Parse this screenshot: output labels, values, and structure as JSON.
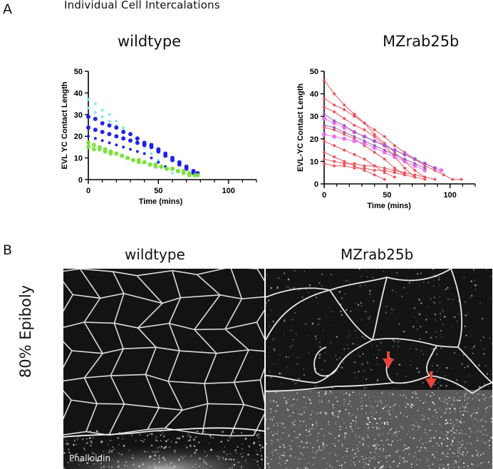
{
  "panel_a": {
    "letter": "A",
    "title": "Individual Cell Intercalations"
  },
  "panel_b": {
    "letter": "B",
    "row_label": "80% Epiboly",
    "stain_label": "Phalloidin",
    "left_title": "wildtype",
    "right_title": "MZrab25b"
  },
  "colors": {
    "wt_cyan": "#7fe8f0",
    "wt_blue": "#1a1ae6",
    "wt_green": "#7be23c",
    "mz_red": "#e8525a",
    "mz_magenta": "#e870e8",
    "mz_purple": "#9a5ab8",
    "membrane": "#e6e6e6"
  },
  "chart_data": [
    {
      "type": "scatter",
      "title": "wildtype",
      "xlabel": "Time (mins)",
      "ylabel": "EVL YC Contact Length",
      "xlim": [
        0,
        120
      ],
      "ylim": [
        0,
        50
      ],
      "xticks": [
        0,
        50,
        100
      ],
      "yticks": [
        0,
        10,
        20,
        30,
        40,
        50
      ],
      "series": [
        {
          "color": "#7fe8f0",
          "size": 2,
          "x": [
            0,
            5,
            10,
            15,
            20,
            25,
            30,
            35,
            40,
            45,
            50,
            55,
            60
          ],
          "y": [
            37,
            35,
            32,
            30,
            27,
            24,
            21,
            18,
            15,
            12,
            9,
            6,
            3
          ]
        },
        {
          "color": "#7fe8f0",
          "size": 2,
          "x": [
            0,
            5,
            10,
            15,
            20,
            25,
            30,
            35,
            40,
            45,
            50
          ],
          "y": [
            33,
            31,
            29,
            27,
            25,
            23,
            21,
            19,
            17,
            15,
            13
          ]
        },
        {
          "color": "#1a1ae6",
          "size": 3,
          "x": [
            0,
            5,
            10,
            15,
            20,
            25,
            30,
            35,
            40,
            45,
            50,
            55,
            60,
            65,
            70,
            75,
            78
          ],
          "y": [
            29,
            28,
            26,
            25,
            24,
            22,
            21,
            19,
            17,
            16,
            14,
            12,
            10,
            8,
            6,
            4,
            3
          ]
        },
        {
          "color": "#1a1ae6",
          "size": 3,
          "x": [
            0,
            5,
            10,
            15,
            20,
            25,
            30,
            35,
            40,
            45,
            50,
            55,
            60,
            65,
            70,
            75
          ],
          "y": [
            24,
            23,
            22,
            21,
            20,
            19,
            18,
            17,
            16,
            15,
            13,
            11,
            9,
            7,
            5,
            3
          ]
        },
        {
          "color": "#1a1ae6",
          "size": 2,
          "x": [
            0,
            5,
            10,
            15,
            20,
            25,
            30,
            35,
            40,
            45,
            50,
            55
          ],
          "y": [
            20,
            19,
            18,
            17,
            16,
            15,
            14,
            13,
            12,
            10,
            8,
            6
          ]
        },
        {
          "color": "#7be23c",
          "size": 3,
          "x": [
            0,
            4,
            8,
            12,
            16,
            20,
            24,
            28,
            32,
            36,
            40,
            44,
            48,
            52,
            56,
            60,
            64,
            68,
            72,
            76,
            78
          ],
          "y": [
            17,
            16,
            15,
            14,
            13,
            12,
            11,
            10,
            9,
            8,
            8,
            7,
            6,
            6,
            5,
            5,
            4,
            4,
            3,
            2,
            2
          ]
        },
        {
          "color": "#7be23c",
          "size": 3,
          "x": [
            0,
            4,
            8,
            12,
            16,
            20,
            24,
            28,
            32,
            36,
            40,
            44,
            48,
            52,
            56,
            60,
            64,
            68,
            72
          ],
          "y": [
            15,
            14,
            14,
            13,
            12,
            12,
            11,
            10,
            9,
            9,
            8,
            7,
            7,
            6,
            5,
            5,
            4,
            3,
            2
          ]
        }
      ]
    },
    {
      "type": "line",
      "title": "MZrab25b",
      "xlabel": "Time (mins)",
      "ylabel": "EVL-YC Contact Length",
      "xlim": [
        0,
        120
      ],
      "ylim": [
        0,
        50
      ],
      "xticks": [
        0,
        50,
        100
      ],
      "yticks": [
        0,
        10,
        20,
        30,
        40,
        50
      ],
      "series": [
        {
          "color": "#e8525a",
          "size": 2,
          "x": [
            0,
            8,
            16,
            24,
            32,
            40,
            48,
            56,
            64,
            72,
            80,
            88,
            95,
            102,
            109
          ],
          "y": [
            46,
            40,
            35,
            31,
            27,
            24,
            21,
            17,
            14,
            11,
            8,
            6,
            4,
            2,
            2
          ]
        },
        {
          "color": "#e8525a",
          "size": 2,
          "x": [
            0,
            8,
            16,
            24,
            32,
            40,
            48,
            56,
            64,
            72,
            80
          ],
          "y": [
            38,
            35,
            33,
            30,
            27,
            22,
            18,
            14,
            10,
            6,
            3
          ]
        },
        {
          "color": "#e8525a",
          "size": 2,
          "x": [
            0,
            8,
            16,
            24,
            32,
            40,
            48,
            56,
            64,
            72
          ],
          "y": [
            34,
            32,
            29,
            26,
            24,
            21,
            17,
            12,
            7,
            3
          ]
        },
        {
          "color": "#e8525a",
          "size": 2,
          "x": [
            0,
            8,
            16,
            24,
            32,
            40,
            48,
            56,
            64
          ],
          "y": [
            25,
            24,
            22,
            20,
            17,
            14,
            11,
            7,
            4
          ]
        },
        {
          "color": "#e8525a",
          "size": 2,
          "x": [
            0,
            8,
            16,
            24,
            32,
            40,
            48,
            56
          ],
          "y": [
            19,
            17,
            15,
            13,
            11,
            8,
            5,
            3
          ]
        },
        {
          "color": "#e8525a",
          "size": 2,
          "x": [
            0,
            8,
            16,
            24,
            32,
            40,
            48
          ],
          "y": [
            14,
            12,
            10,
            8,
            6,
            4,
            2
          ]
        },
        {
          "color": "#e8525a",
          "size": 2,
          "x": [
            0,
            8,
            16,
            24,
            32,
            40,
            48,
            56,
            64,
            72,
            80,
            88
          ],
          "y": [
            11,
            10,
            9,
            9,
            8,
            8,
            7,
            6,
            5,
            4,
            3,
            2
          ]
        },
        {
          "color": "#e8525a",
          "size": 2,
          "x": [
            0,
            8,
            16,
            24,
            32,
            40,
            48,
            56,
            64,
            72,
            80
          ],
          "y": [
            9,
            8,
            8,
            7,
            7,
            6,
            6,
            5,
            4,
            3,
            2
          ]
        },
        {
          "color": "#e870e8",
          "size": 3,
          "x": [
            0,
            8,
            16,
            24,
            32,
            40,
            48,
            56,
            64,
            72,
            80,
            88,
            93
          ],
          "y": [
            29,
            27,
            25,
            23,
            21,
            19,
            17,
            15,
            13,
            11,
            9,
            7,
            6
          ]
        },
        {
          "color": "#e870e8",
          "size": 3,
          "x": [
            0,
            8,
            16,
            24,
            32,
            40,
            48,
            56,
            64,
            72,
            80
          ],
          "y": [
            22,
            21,
            20,
            19,
            18,
            16,
            14,
            12,
            10,
            8,
            6
          ]
        },
        {
          "color": "#9a5ab8",
          "size": 2,
          "x": [
            0,
            8,
            16,
            24,
            32,
            40,
            48,
            56,
            64,
            72,
            80,
            88
          ],
          "y": [
            31,
            28,
            26,
            23,
            21,
            19,
            17,
            15,
            13,
            11,
            9,
            7
          ]
        },
        {
          "color": "#9a5ab8",
          "size": 2,
          "x": [
            0,
            8,
            16,
            24,
            32,
            40,
            48,
            56,
            64,
            72,
            80
          ],
          "y": [
            26,
            25,
            23,
            21,
            19,
            17,
            15,
            13,
            11,
            9,
            7
          ]
        }
      ]
    }
  ]
}
